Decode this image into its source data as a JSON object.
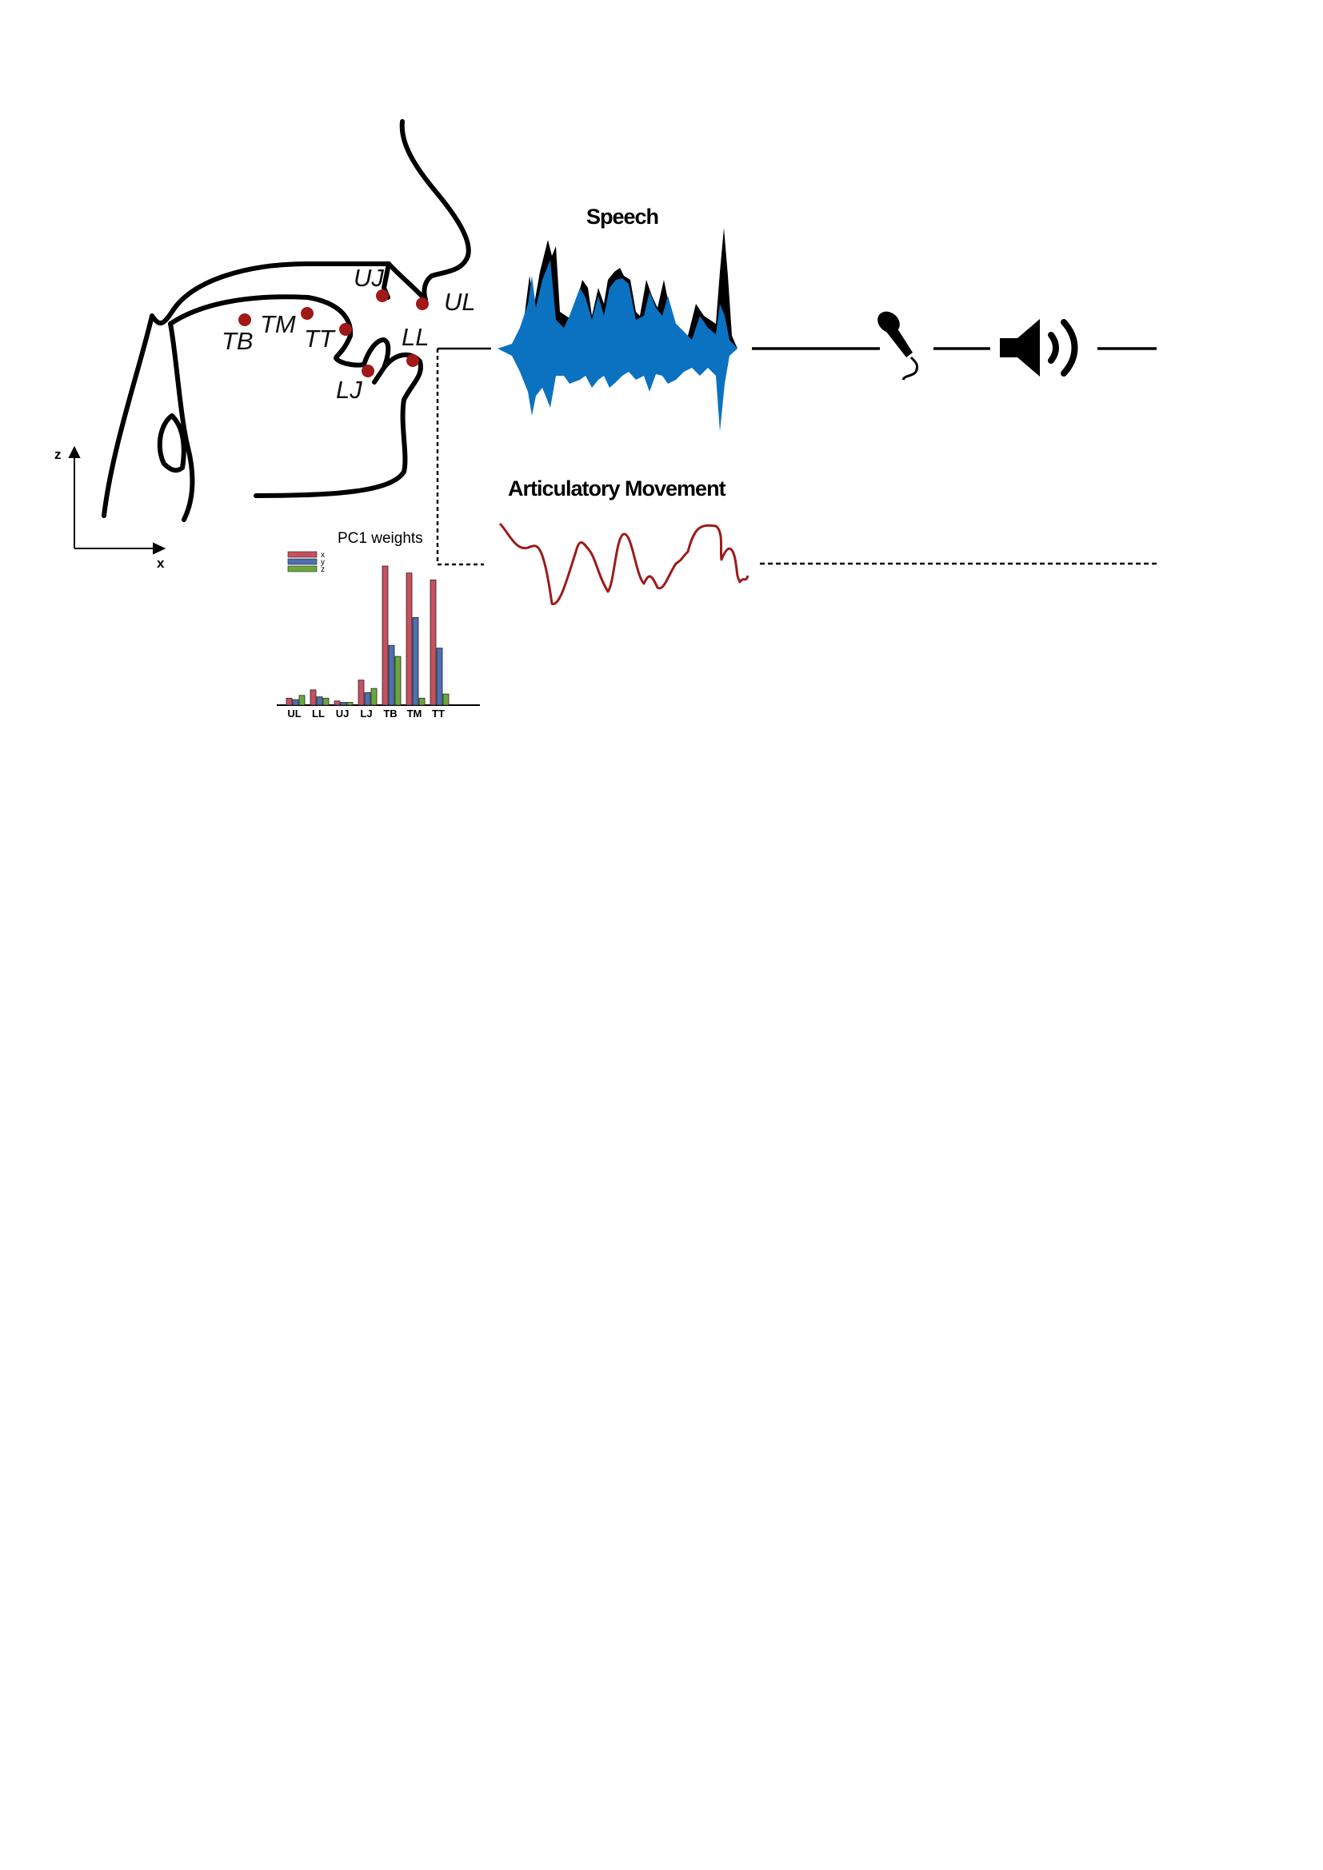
{
  "titles": {
    "speech": "Speech",
    "articulatory": "Articulatory Movement",
    "pc1": "PC1 weights"
  },
  "sensors": [
    {
      "id": "UJ",
      "label": "UJ"
    },
    {
      "id": "UL",
      "label": "UL"
    },
    {
      "id": "TB",
      "label": "TB"
    },
    {
      "id": "TM",
      "label": "TM"
    },
    {
      "id": "TT",
      "label": "TT"
    },
    {
      "id": "LL",
      "label": "LL"
    },
    {
      "id": "LJ",
      "label": "LJ"
    }
  ],
  "axes": {
    "vertical": "z",
    "horizontal": "x"
  },
  "colors": {
    "sensor_dot": "#a01818",
    "speech_wave": "#0a72c0",
    "speech_envelope": "#000000",
    "articulatory_trace": "#9e1a1a",
    "bar_x": "#c8505e",
    "bar_y": "#4e6fb0",
    "bar_z": "#6aa83c"
  },
  "icons": [
    "microphone-icon",
    "speaker-icon"
  ],
  "chart_data": {
    "type": "bar",
    "title": "PC1 weights",
    "categories": [
      "UL",
      "LL",
      "UJ",
      "LJ",
      "TB",
      "TM",
      "TT"
    ],
    "series": [
      {
        "name": "x",
        "values": [
          0.05,
          0.11,
          0.03,
          0.18,
          1.0,
          0.95,
          0.9
        ]
      },
      {
        "name": "y",
        "values": [
          0.04,
          0.06,
          0.02,
          0.09,
          0.43,
          0.63,
          0.41
        ]
      },
      {
        "name": "z",
        "values": [
          0.07,
          0.05,
          0.02,
          0.12,
          0.35,
          0.05,
          0.08
        ]
      }
    ],
    "ylim": [
      0,
      1.0
    ],
    "legend": "top-left"
  }
}
